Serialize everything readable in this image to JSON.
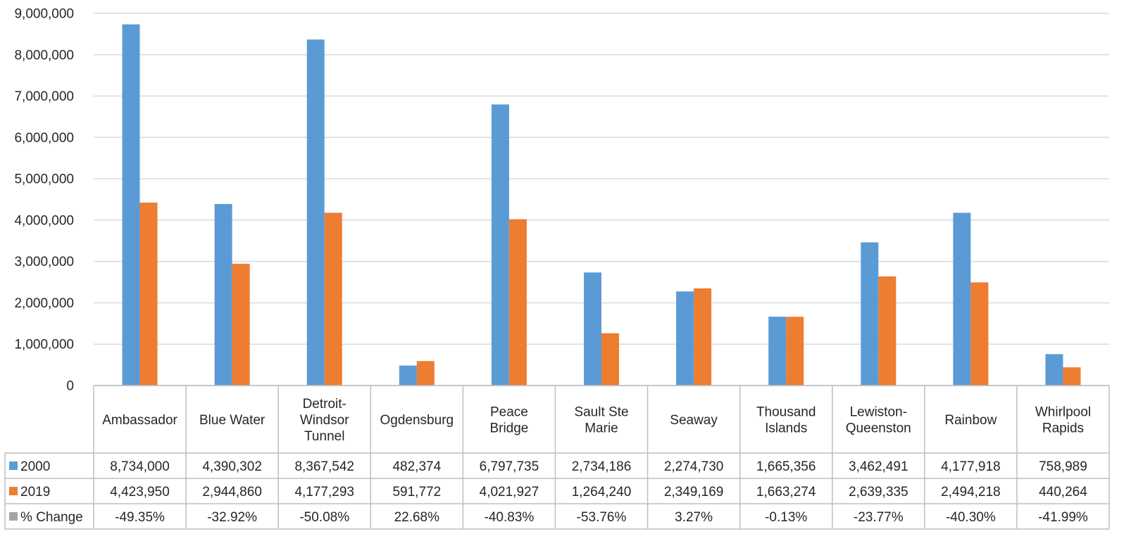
{
  "colors": {
    "series_2000": "#5B9BD5",
    "series_2019": "#ED7D31",
    "pct_change": "#A5A5A5",
    "grid": "#D9D9D9",
    "table_border": "#BFBFBF",
    "text": "#262626"
  },
  "chart_data": {
    "type": "bar",
    "title": "",
    "xlabel": "",
    "ylabel": "",
    "ylim": [
      0,
      9000000
    ],
    "y_ticks": [
      "0",
      "1,000,000",
      "2,000,000",
      "3,000,000",
      "4,000,000",
      "5,000,000",
      "6,000,000",
      "7,000,000",
      "8,000,000",
      "9,000,000"
    ],
    "grid": true,
    "legend": "data-table",
    "categories": [
      [
        "Ambassador"
      ],
      [
        "Blue Water"
      ],
      [
        "Detroit-",
        "Windsor",
        "Tunnel"
      ],
      [
        "Ogdensburg"
      ],
      [
        "Peace",
        "Bridge"
      ],
      [
        "Sault Ste",
        "Marie"
      ],
      [
        "Seaway"
      ],
      [
        "Thousand",
        "Islands"
      ],
      [
        "Lewiston-",
        "Queenston"
      ],
      [
        "Rainbow"
      ],
      [
        "Whirlpool",
        "Rapids"
      ]
    ],
    "series": [
      {
        "name": "2000",
        "values": [
          8734000,
          4390302,
          8367542,
          482374,
          6797735,
          2734186,
          2274730,
          1665356,
          3462491,
          4177918,
          758989
        ]
      },
      {
        "name": "2019",
        "values": [
          4423950,
          2944860,
          4177293,
          591772,
          4021927,
          1264240,
          2349169,
          1663274,
          2639335,
          2494218,
          440264
        ]
      }
    ],
    "table_rows": [
      {
        "label": "2000",
        "cells": [
          "8,734,000",
          "4,390,302",
          "8,367,542",
          "482,374",
          "6,797,735",
          "2,734,186",
          "2,274,730",
          "1,665,356",
          "3,462,491",
          "4,177,918",
          "758,989"
        ]
      },
      {
        "label": "2019",
        "cells": [
          "4,423,950",
          "2,944,860",
          "4,177,293",
          "591,772",
          "4,021,927",
          "1,264,240",
          "2,349,169",
          "1,663,274",
          "2,639,335",
          "2,494,218",
          "440,264"
        ]
      },
      {
        "label": "% Change",
        "cells": [
          "-49.35%",
          "-32.92%",
          "-50.08%",
          "22.68%",
          "-40.83%",
          "-53.76%",
          "3.27%",
          "-0.13%",
          "-23.77%",
          "-40.30%",
          "-41.99%"
        ]
      }
    ]
  }
}
